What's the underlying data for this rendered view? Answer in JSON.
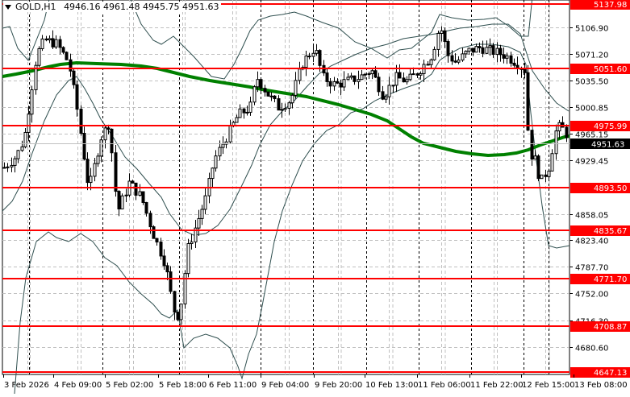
{
  "header": {
    "symbol": "GOLD,H1",
    "ohlc": "4946.16 4961.48 4945.75 4951.63",
    "dropdown_icon": "triangle-down-icon"
  },
  "colors": {
    "background": "#ffffff",
    "grid": "#c0c0c0",
    "level_line": "#ff0000",
    "ma_line": "#008000",
    "bands": "#2f4f4f",
    "candle": "#000000",
    "current_price_bg": "#000000"
  },
  "price_axis": {
    "ticks": [
      "5106.90",
      "5071.20",
      "5035.50",
      "5000.85",
      "4965.15",
      "4929.45",
      "4858.05",
      "4823.40",
      "4787.70",
      "4752.00",
      "4716.30",
      "4680.60"
    ],
    "current_price": "4951.63"
  },
  "levels": [
    "5137.98",
    "5051.60",
    "4975.99",
    "4893.50",
    "4835.67",
    "4771.70",
    "4708.87",
    "4647.13"
  ],
  "time_axis": {
    "labels": [
      "3 Feb 2026",
      "4 Feb 09:00",
      "5 Feb 02:00",
      "5 Feb 18:00",
      "6 Feb 11:00",
      "9 Feb 04:00",
      "9 Feb 20:00",
      "10 Feb 13:00",
      "11 Feb 06:00",
      "11 Feb 22:00",
      "12 Feb 15:00",
      "13 Feb 08:00"
    ]
  },
  "chart_data": {
    "type": "candlestick",
    "title": "GOLD,H1",
    "subtitle": "4946.16 4961.48 4945.75 4951.63",
    "xlabel": "",
    "ylabel": "",
    "ylim": [
      4640,
      5142
    ],
    "grid": true,
    "categories": [
      "3 Feb 2026",
      "4 Feb 09:00",
      "5 Feb 02:00",
      "5 Feb 18:00",
      "6 Feb 11:00",
      "9 Feb 04:00",
      "9 Feb 20:00",
      "10 Feb 13:00",
      "11 Feb 06:00",
      "11 Feb 22:00",
      "12 Feb 15:00",
      "13 Feb 08:00"
    ],
    "horizontal_levels": [
      5137.98,
      5051.6,
      4975.99,
      4893.5,
      4835.67,
      4771.7,
      4708.87,
      4647.13
    ],
    "last_price": 4951.63,
    "series": [
      {
        "name": "MA (green)",
        "values": [
          5050,
          5060,
          5060,
          5055,
          5035,
          5020,
          4995,
          4965,
          4945,
          4938,
          4945,
          4962
        ]
      },
      {
        "name": "Bollinger upper",
        "values": [
          5110,
          5060,
          5120,
          4960,
          5060,
          5130,
          5085,
          5060,
          5130,
          5115,
          5000,
          4965
        ]
      },
      {
        "name": "Bollinger middle",
        "values": [
          4900,
          5010,
          4990,
          4850,
          4880,
          4990,
          5025,
          5050,
          5085,
          5075,
          4960,
          4960
        ]
      },
      {
        "name": "Bollinger lower",
        "values": [
          4660,
          4790,
          4820,
          4700,
          4720,
          4830,
          4940,
          4995,
          5040,
          5045,
          4820,
          4815
        ]
      },
      {
        "name": "Close (approx)",
        "values": [
          4920,
          5090,
          4990,
          4720,
          4880,
          5070,
          5040,
          5020,
          5080,
          5075,
          4935,
          4951.63
        ]
      }
    ]
  }
}
